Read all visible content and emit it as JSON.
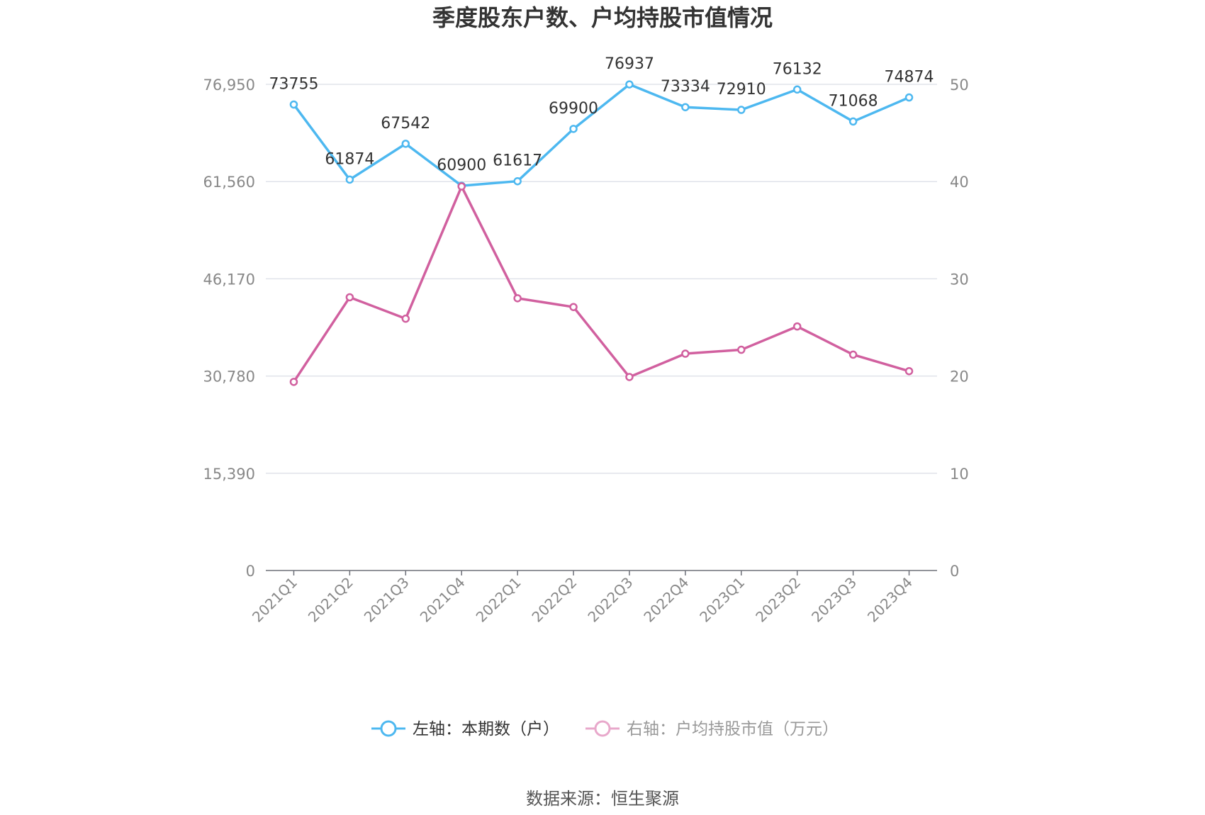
{
  "chart_data": {
    "type": "line",
    "title": "季度股东户数、户均持股市值情况",
    "categories": [
      "2021Q1",
      "2021Q2",
      "2021Q3",
      "2021Q4",
      "2022Q1",
      "2022Q2",
      "2022Q3",
      "2022Q4",
      "2023Q1",
      "2023Q2",
      "2023Q3",
      "2023Q4"
    ],
    "series": [
      {
        "name": "左轴：本期数（户）",
        "axis": "left",
        "color": "#4db8f0",
        "values": [
          73755,
          61874,
          67542,
          60900,
          61617,
          69900,
          76937,
          73334,
          72910,
          76132,
          71068,
          74874
        ],
        "data_labels": [
          "73755",
          "61874",
          "67542",
          "60900",
          "61617",
          "69900",
          "76937",
          "73334",
          "72910",
          "76132",
          "71068",
          "74874"
        ]
      },
      {
        "name": "右轴：户均持股市值（万元）",
        "axis": "right",
        "color": "#d1609f",
        "values": [
          19.4,
          28.1,
          25.9,
          39.5,
          28.0,
          27.1,
          19.9,
          22.3,
          22.7,
          25.1,
          22.2,
          20.5
        ]
      }
    ],
    "left_axis": {
      "ylim": [
        0,
        76950
      ],
      "ticks": [
        0,
        15390,
        30780,
        46170,
        61560,
        76950
      ],
      "tick_labels": [
        "0",
        "15,390",
        "30,780",
        "46,170",
        "61,560",
        "76,950"
      ]
    },
    "right_axis": {
      "ylim": [
        0,
        50
      ],
      "ticks": [
        0,
        10,
        20,
        30,
        40,
        50
      ],
      "tick_labels": [
        "0",
        "10",
        "20",
        "30",
        "40",
        "50"
      ]
    },
    "grid": true,
    "legend_position": "bottom-center",
    "source": "数据来源：恒生聚源"
  },
  "colors": {
    "gridline": "#e0e3ea",
    "axis_line": "#6e7079",
    "legend_inactive": "#999999"
  }
}
